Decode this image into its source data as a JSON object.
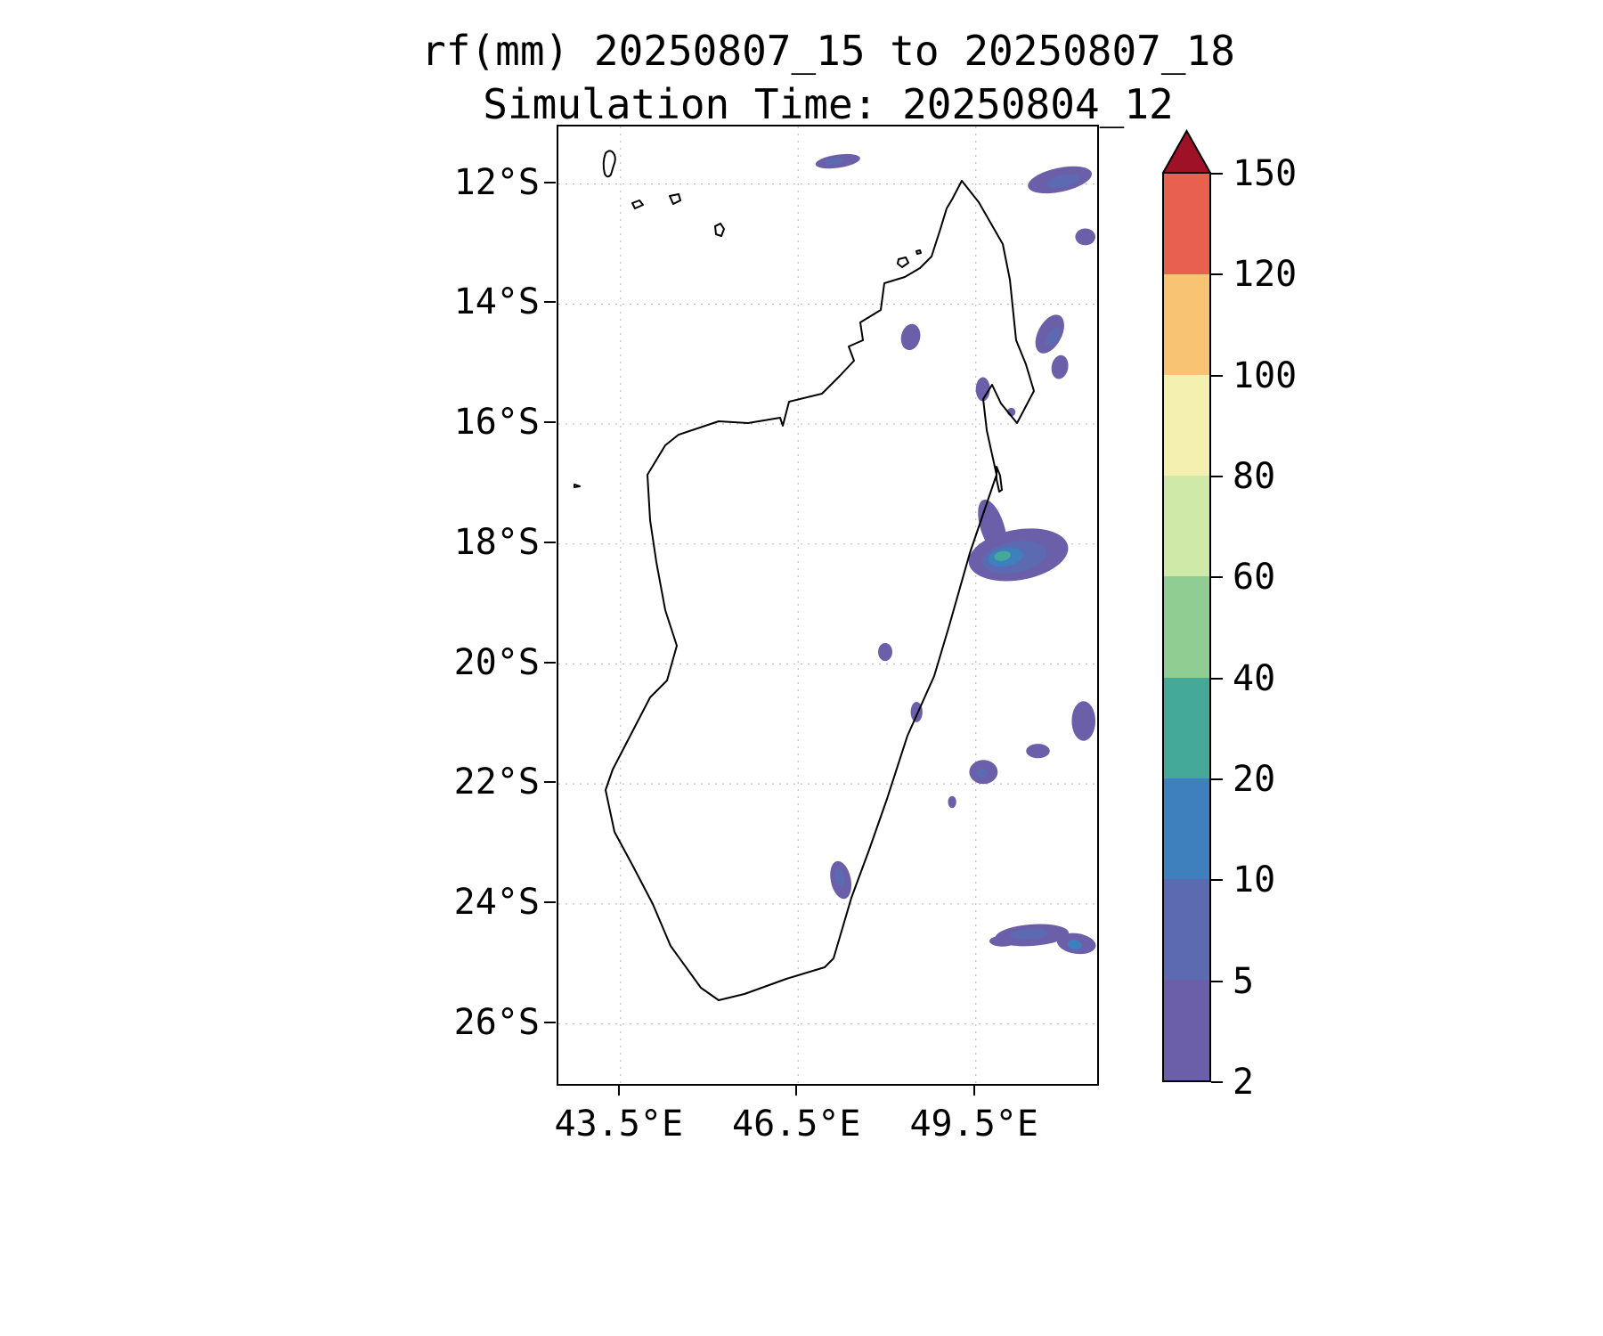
{
  "title": {
    "line1": "rf(mm) 20250807_15 to 20250807_18",
    "line2": "Simulation Time: 20250804_12"
  },
  "chart_data": {
    "type": "heatmap",
    "title": "rf(mm) 20250807_15 to 20250807_18",
    "subtitle": "Simulation Time: 20250804_12",
    "variable": "rf(mm)",
    "valid_period": "20250807_15 to 20250807_18",
    "simulation_time": "20250804_12",
    "region": "Madagascar",
    "grid": true,
    "x_axis": {
      "label": "longitude",
      "range": [
        42.45,
        51.55
      ],
      "tick_values": [
        43.5,
        46.5,
        49.5
      ],
      "tick_labels": [
        "43.5°E",
        "46.5°E",
        "49.5°E"
      ]
    },
    "y_axis": {
      "label": "latitude",
      "range": [
        -27.0,
        -11.04
      ],
      "tick_values": [
        -12,
        -14,
        -16,
        -18,
        -20,
        -22,
        -24,
        -26
      ],
      "tick_labels": [
        "12°S",
        "14°S",
        "16°S",
        "18°S",
        "20°S",
        "22°S",
        "24°S",
        "26°S"
      ]
    },
    "colorbar": {
      "units": "mm",
      "levels": [
        2,
        5,
        10,
        20,
        40,
        60,
        80,
        100,
        120,
        150
      ],
      "tick_labels": [
        "2",
        "5",
        "10",
        "20",
        "40",
        "60",
        "80",
        "100",
        "120",
        "150"
      ],
      "segment_colors": [
        "#6a5fa8",
        "#5c6ab2",
        "#3e7fbd",
        "#45a99a",
        "#8fcd92",
        "#cfe9a8",
        "#f4f1b0",
        "#f8c472",
        "#e8604e"
      ],
      "over_color": "#9e1126",
      "legend_position": "right"
    },
    "rain_patches": [
      {
        "lon": 47.17,
        "lat": -11.62,
        "rx": 0.38,
        "ry": 0.11,
        "rot": -8,
        "level": 0
      },
      {
        "lon": 47.1,
        "lat": -11.62,
        "rx": 0.16,
        "ry": 0.06,
        "rot": -8,
        "level": 1
      },
      {
        "lon": 50.92,
        "lat": -11.93,
        "rx": 0.55,
        "ry": 0.2,
        "rot": -12,
        "level": 0
      },
      {
        "lon": 50.97,
        "lat": -11.95,
        "rx": 0.28,
        "ry": 0.1,
        "rot": -12,
        "level": 1
      },
      {
        "lon": 51.35,
        "lat": -12.88,
        "rx": 0.17,
        "ry": 0.14,
        "rot": 0,
        "level": 0
      },
      {
        "lon": 48.4,
        "lat": -14.55,
        "rx": 0.16,
        "ry": 0.22,
        "rot": 12,
        "level": 0
      },
      {
        "lon": 50.75,
        "lat": -14.5,
        "rx": 0.2,
        "ry": 0.35,
        "rot": 28,
        "level": 0
      },
      {
        "lon": 50.8,
        "lat": -14.55,
        "rx": 0.09,
        "ry": 0.18,
        "rot": 28,
        "level": 1
      },
      {
        "lon": 50.92,
        "lat": -15.05,
        "rx": 0.14,
        "ry": 0.2,
        "rot": 10,
        "level": 0
      },
      {
        "lon": 49.62,
        "lat": -15.42,
        "rx": 0.12,
        "ry": 0.2,
        "rot": 0,
        "level": 0
      },
      {
        "lon": 50.1,
        "lat": -15.8,
        "rx": 0.07,
        "ry": 0.07,
        "rot": 0,
        "level": 0
      },
      {
        "lon": 49.78,
        "lat": -17.72,
        "rx": 0.2,
        "ry": 0.48,
        "rot": -18,
        "level": 0
      },
      {
        "lon": 50.22,
        "lat": -18.18,
        "rx": 0.85,
        "ry": 0.42,
        "rot": -10,
        "level": 0
      },
      {
        "lon": 50.15,
        "lat": -18.22,
        "rx": 0.55,
        "ry": 0.26,
        "rot": -10,
        "level": 1
      },
      {
        "lon": 50.0,
        "lat": -18.22,
        "rx": 0.3,
        "ry": 0.15,
        "rot": -10,
        "level": 2
      },
      {
        "lon": 49.95,
        "lat": -18.2,
        "rx": 0.14,
        "ry": 0.08,
        "rot": -10,
        "level": 3
      },
      {
        "lon": 47.97,
        "lat": -19.8,
        "rx": 0.12,
        "ry": 0.15,
        "rot": 0,
        "level": 0
      },
      {
        "lon": 48.5,
        "lat": -20.8,
        "rx": 0.1,
        "ry": 0.17,
        "rot": 0,
        "level": 0
      },
      {
        "lon": 51.32,
        "lat": -20.95,
        "rx": 0.2,
        "ry": 0.33,
        "rot": 0,
        "level": 0
      },
      {
        "lon": 50.55,
        "lat": -21.45,
        "rx": 0.2,
        "ry": 0.12,
        "rot": 0,
        "level": 0
      },
      {
        "lon": 49.63,
        "lat": -21.8,
        "rx": 0.24,
        "ry": 0.2,
        "rot": 0,
        "level": 0
      },
      {
        "lon": 49.6,
        "lat": -21.82,
        "rx": 0.1,
        "ry": 0.08,
        "rot": 0,
        "level": 1
      },
      {
        "lon": 49.1,
        "lat": -22.3,
        "rx": 0.07,
        "ry": 0.1,
        "rot": 0,
        "level": 0
      },
      {
        "lon": 47.22,
        "lat": -23.6,
        "rx": 0.17,
        "ry": 0.32,
        "rot": -12,
        "level": 0
      },
      {
        "lon": 47.2,
        "lat": -23.55,
        "rx": 0.08,
        "ry": 0.16,
        "rot": -12,
        "level": 1
      },
      {
        "lon": 50.45,
        "lat": -24.52,
        "rx": 0.62,
        "ry": 0.18,
        "rot": -4,
        "level": 0
      },
      {
        "lon": 50.4,
        "lat": -24.5,
        "rx": 0.32,
        "ry": 0.09,
        "rot": -4,
        "level": 1
      },
      {
        "lon": 51.2,
        "lat": -24.66,
        "rx": 0.33,
        "ry": 0.17,
        "rot": 8,
        "level": 0
      },
      {
        "lon": 51.17,
        "lat": -24.68,
        "rx": 0.12,
        "ry": 0.08,
        "rot": 8,
        "level": 2
      },
      {
        "lon": 49.95,
        "lat": -24.62,
        "rx": 0.22,
        "ry": 0.09,
        "rot": 0,
        "level": 0
      }
    ]
  }
}
